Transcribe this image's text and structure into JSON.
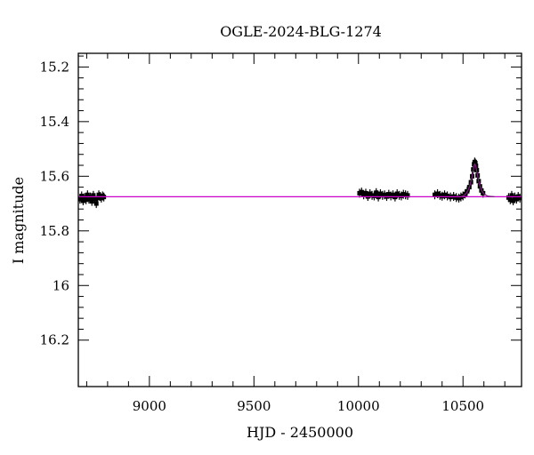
{
  "chart_data": {
    "type": "scatter",
    "title": "OGLE-2024-BLG-1274",
    "xlabel": "HJD - 2450000",
    "ylabel": "I magnitude",
    "xlim": [
      8660,
      10780
    ],
    "ylim": [
      15.15,
      16.37
    ],
    "y_inverted": true,
    "grid": false,
    "x_ticks": [
      9000,
      9500,
      10000,
      10500
    ],
    "x_tick_labels": [
      "9000",
      "9500",
      "10000",
      "10500"
    ],
    "y_ticks": [
      15.2,
      15.4,
      15.6,
      15.8,
      16,
      16.2
    ],
    "y_tick_labels": [
      "15.2",
      "15.4",
      "15.6",
      "15.8",
      "16",
      "16.2"
    ],
    "baseline_magnitude": 15.675,
    "colors": {
      "points": "#000000",
      "model": "#cc00cc",
      "peak_model": "#7a1f7a"
    },
    "series": [
      {
        "type": "scatter",
        "points": [
          [
            8668,
            15.684
          ],
          [
            8676,
            15.672
          ],
          [
            8683,
            15.69
          ],
          [
            8690,
            15.678
          ],
          [
            8697,
            15.686
          ],
          [
            8704,
            15.668
          ],
          [
            8711,
            15.684
          ],
          [
            8718,
            15.676
          ],
          [
            8725,
            15.692
          ],
          [
            8732,
            15.67
          ],
          [
            8739,
            15.683
          ],
          [
            8746,
            15.7
          ],
          [
            8752,
            15.68
          ],
          [
            8758,
            15.668
          ],
          [
            8764,
            15.674
          ],
          [
            8770,
            15.68
          ],
          [
            8776,
            15.672
          ],
          [
            8782,
            15.676
          ],
          [
            10005,
            15.662
          ],
          [
            10015,
            15.658
          ],
          [
            10025,
            15.668
          ],
          [
            10035,
            15.662
          ],
          [
            10045,
            15.674
          ],
          [
            10055,
            15.664
          ],
          [
            10065,
            15.67
          ],
          [
            10075,
            15.672
          ],
          [
            10085,
            15.66
          ],
          [
            10095,
            15.676
          ],
          [
            10105,
            15.664
          ],
          [
            10115,
            15.67
          ],
          [
            10125,
            15.668
          ],
          [
            10135,
            15.674
          ],
          [
            10145,
            15.666
          ],
          [
            10155,
            15.672
          ],
          [
            10165,
            15.668
          ],
          [
            10175,
            15.676
          ],
          [
            10185,
            15.664
          ],
          [
            10195,
            15.67
          ],
          [
            10205,
            15.672
          ],
          [
            10215,
            15.666
          ],
          [
            10225,
            15.668
          ],
          [
            10235,
            15.67
          ],
          [
            10365,
            15.668
          ],
          [
            10378,
            15.664
          ],
          [
            10390,
            15.67
          ],
          [
            10400,
            15.673
          ],
          [
            10412,
            15.668
          ],
          [
            10425,
            15.672
          ],
          [
            10440,
            15.676
          ],
          [
            10455,
            15.674
          ],
          [
            10468,
            15.678
          ],
          [
            10480,
            15.68
          ],
          [
            10490,
            15.676
          ],
          [
            10500,
            15.672
          ],
          [
            10510,
            15.665
          ],
          [
            10520,
            15.655
          ],
          [
            10530,
            15.64
          ],
          [
            10538,
            15.622
          ],
          [
            10544,
            15.6
          ],
          [
            10549,
            15.575
          ],
          [
            10553,
            15.556
          ],
          [
            10556,
            15.548
          ],
          [
            10559,
            15.552
          ],
          [
            10562,
            15.562
          ],
          [
            10566,
            15.578
          ],
          [
            10570,
            15.597
          ],
          [
            10575,
            15.618
          ],
          [
            10581,
            15.637
          ],
          [
            10588,
            15.652
          ],
          [
            10596,
            15.662
          ],
          [
            10718,
            15.678
          ],
          [
            10726,
            15.686
          ],
          [
            10733,
            15.67
          ],
          [
            10740,
            15.69
          ],
          [
            10748,
            15.676
          ],
          [
            10756,
            15.684
          ],
          [
            10764,
            15.674
          ],
          [
            10772,
            15.68
          ]
        ]
      },
      {
        "type": "line",
        "points": [
          [
            8660,
            15.675
          ],
          [
            10780,
            15.675
          ]
        ]
      },
      {
        "type": "line",
        "points": [
          [
            10490,
            15.675
          ],
          [
            10505,
            15.67
          ],
          [
            10518,
            15.66
          ],
          [
            10528,
            15.645
          ],
          [
            10536,
            15.626
          ],
          [
            10543,
            15.603
          ],
          [
            10549,
            15.579
          ],
          [
            10553,
            15.562
          ],
          [
            10556,
            15.555
          ],
          [
            10559,
            15.558
          ],
          [
            10563,
            15.57
          ],
          [
            10568,
            15.59
          ],
          [
            10574,
            15.614
          ],
          [
            10581,
            15.636
          ],
          [
            10590,
            15.654
          ],
          [
            10602,
            15.666
          ],
          [
            10620,
            15.673
          ],
          [
            10650,
            15.675
          ]
        ]
      }
    ]
  }
}
